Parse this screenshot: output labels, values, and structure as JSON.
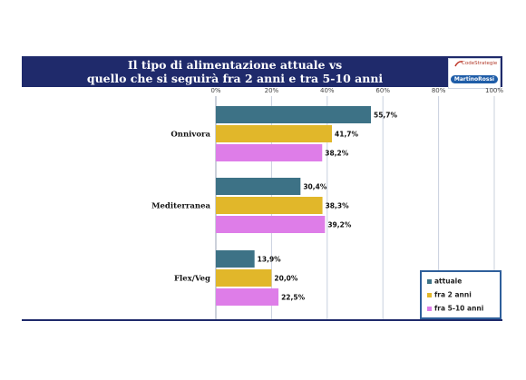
{
  "title_lines": [
    "Il tipo di alimentazione attuale vs",
    "quello che si seguirà fra 2 anni e tra 5-10 anni"
  ],
  "logo": {
    "top_text": "CodeStrategie",
    "bottom_text": "MartinoRossi"
  },
  "colors": {
    "header": "#1f2a6b",
    "attuale": "#3d7286",
    "fra2": "#e1b72a",
    "fra510": "#de7de8"
  },
  "chart_data": {
    "type": "bar",
    "orientation": "horizontal",
    "categories": [
      "Onnivora",
      "Mediterranea",
      "Flex/Veg"
    ],
    "series": [
      {
        "name": "attuale",
        "values": [
          55.7,
          30.4,
          13.9
        ],
        "labels": [
          "55,7%",
          "30,4%",
          "13,9%"
        ]
      },
      {
        "name": "fra 2 anni",
        "values": [
          41.7,
          38.3,
          20.0
        ],
        "labels": [
          "41,7%",
          "38,3%",
          "20,0%"
        ]
      },
      {
        "name": "fra 5-10 anni",
        "values": [
          38.2,
          39.2,
          22.5
        ],
        "labels": [
          "38,2%",
          "39,2%",
          "22,5%"
        ]
      }
    ],
    "x_ticks": [
      "0%",
      "20%",
      "40%",
      "60%",
      "80%",
      "100%"
    ],
    "xlim": [
      0,
      100
    ],
    "grid": true,
    "legend_position": "bottom-right"
  }
}
